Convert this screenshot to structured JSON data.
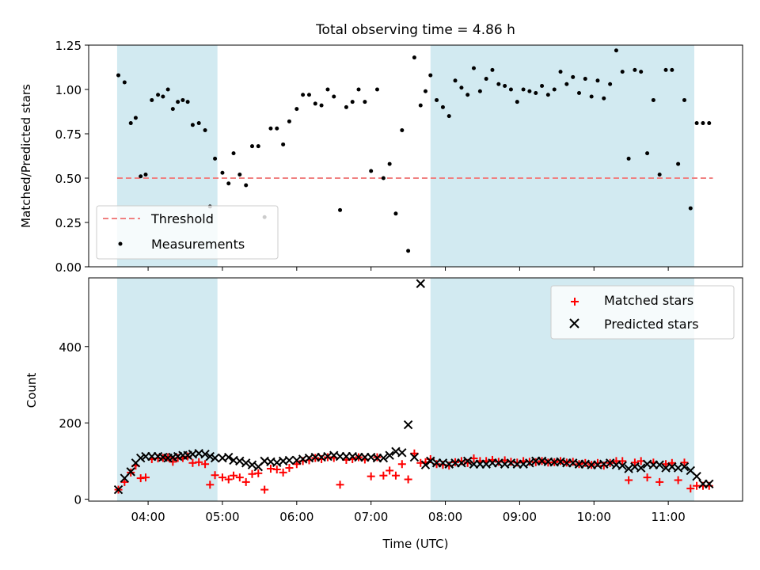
{
  "chart_data": [
    {
      "type": "scatter",
      "title": "Total observing time = 4.86 h",
      "ylabel": "Matched/Predicted stars",
      "xlabel": "",
      "xlim": [
        3.2,
        12.0
      ],
      "ylim": [
        0,
        1.25
      ],
      "yticks": [
        0,
        0.25,
        0.5,
        0.75,
        1.0,
        1.25
      ],
      "ytick_labels": [
        "0.00",
        "0.25",
        "0.50",
        "0.75",
        "1.00",
        "1.25"
      ],
      "shaded_intervals": [
        [
          3.583,
          4.933
        ],
        [
          7.8,
          11.35
        ]
      ],
      "shade_color": "#add8e6",
      "threshold": {
        "name": "Threshold",
        "value": 0.5,
        "x_range": [
          3.583,
          11.6
        ],
        "color": "#f08080"
      },
      "legend_location": "lower-left",
      "series": [
        {
          "name": "Measurements",
          "color": "#000000",
          "x": [
            3.6,
            3.683,
            3.767,
            3.833,
            3.9,
            3.967,
            4.05,
            4.133,
            4.2,
            4.267,
            4.333,
            4.4,
            4.467,
            4.533,
            4.6,
            4.683,
            4.767,
            4.833,
            4.9,
            5.0,
            5.083,
            5.15,
            5.233,
            5.317,
            5.4,
            5.483,
            5.567,
            5.65,
            5.733,
            5.817,
            5.9,
            6.0,
            6.083,
            6.167,
            6.25,
            6.333,
            6.417,
            6.5,
            6.583,
            6.667,
            6.75,
            6.833,
            6.917,
            7.0,
            7.083,
            7.167,
            7.25,
            7.333,
            7.417,
            7.5,
            7.583,
            7.667,
            7.733,
            7.8,
            7.883,
            7.967,
            8.05,
            8.133,
            8.217,
            8.3,
            8.383,
            8.467,
            8.55,
            8.633,
            8.717,
            8.8,
            8.883,
            8.967,
            9.05,
            9.133,
            9.217,
            9.3,
            9.383,
            9.467,
            9.55,
            9.633,
            9.717,
            9.8,
            9.883,
            9.967,
            10.05,
            10.133,
            10.217,
            10.3,
            10.383,
            10.467,
            10.55,
            10.633,
            10.717,
            10.8,
            10.883,
            10.967,
            11.05,
            11.133,
            11.217,
            11.3,
            11.383,
            11.467,
            11.55
          ],
          "y": [
            1.08,
            1.04,
            0.81,
            0.84,
            0.51,
            0.52,
            0.94,
            0.97,
            0.96,
            1.0,
            0.89,
            0.93,
            0.94,
            0.93,
            0.8,
            0.81,
            0.77,
            0.34,
            0.61,
            0.53,
            0.47,
            0.64,
            0.52,
            0.46,
            0.68,
            0.68,
            0.28,
            0.78,
            0.78,
            0.69,
            0.82,
            0.89,
            0.97,
            0.97,
            0.92,
            0.91,
            1.0,
            0.96,
            0.32,
            0.9,
            0.93,
            1.0,
            0.93,
            0.54,
            1.0,
            0.5,
            0.58,
            0.3,
            0.77,
            0.09,
            1.18,
            0.91,
            0.99,
            1.08,
            0.94,
            0.9,
            0.85,
            1.05,
            1.01,
            0.97,
            1.12,
            0.99,
            1.06,
            1.11,
            1.03,
            1.02,
            1.0,
            0.93,
            1.0,
            0.99,
            0.98,
            1.02,
            0.97,
            1.0,
            1.1,
            1.03,
            1.07,
            0.98,
            1.06,
            0.96,
            1.05,
            0.95,
            1.03,
            1.22,
            1.1,
            0.61,
            1.11,
            1.1,
            0.64,
            0.94,
            0.52,
            1.11,
            1.11,
            0.58,
            0.94,
            0.33,
            0.81,
            0.81,
            0.81
          ]
        }
      ]
    },
    {
      "type": "scatter",
      "title": "",
      "xlabel": "Time (UTC)",
      "ylabel": "Count",
      "xlim": [
        3.2,
        12.0
      ],
      "ylim": [
        -5,
        580
      ],
      "yticks": [
        0,
        200,
        400
      ],
      "ytick_labels": [
        "0",
        "200",
        "400"
      ],
      "xticks": [
        4,
        5,
        6,
        7,
        8,
        9,
        10,
        11
      ],
      "xtick_labels": [
        "04:00",
        "05:00",
        "06:00",
        "07:00",
        "08:00",
        "09:00",
        "10:00",
        "11:00"
      ],
      "shaded_intervals": [
        [
          3.583,
          4.933
        ],
        [
          7.8,
          11.35
        ]
      ],
      "shade_color": "#add8e6",
      "legend_location": "upper-right",
      "series": [
        {
          "name": "Matched stars",
          "marker": "plus",
          "color": "#ff0000",
          "x": [
            3.6,
            3.683,
            3.767,
            3.833,
            3.9,
            3.967,
            4.05,
            4.133,
            4.2,
            4.267,
            4.333,
            4.4,
            4.467,
            4.533,
            4.6,
            4.683,
            4.767,
            4.833,
            4.9,
            5.0,
            5.083,
            5.15,
            5.233,
            5.317,
            5.4,
            5.483,
            5.567,
            5.65,
            5.733,
            5.817,
            5.9,
            6.0,
            6.083,
            6.167,
            6.25,
            6.333,
            6.417,
            6.5,
            6.583,
            6.667,
            6.75,
            6.833,
            6.917,
            7.0,
            7.083,
            7.167,
            7.25,
            7.333,
            7.417,
            7.5,
            7.583,
            7.667,
            7.733,
            7.8,
            7.883,
            7.967,
            8.05,
            8.133,
            8.217,
            8.3,
            8.383,
            8.467,
            8.55,
            8.633,
            8.717,
            8.8,
            8.883,
            8.967,
            9.05,
            9.133,
            9.217,
            9.3,
            9.383,
            9.467,
            9.55,
            9.633,
            9.717,
            9.8,
            9.883,
            9.967,
            10.05,
            10.133,
            10.217,
            10.3,
            10.383,
            10.467,
            10.55,
            10.633,
            10.717,
            10.8,
            10.883,
            10.967,
            11.05,
            11.133,
            11.217,
            11.3,
            11.383,
            11.467,
            11.55
          ],
          "y": [
            25,
            45,
            70,
            88,
            55,
            57,
            105,
            107,
            108,
            110,
            98,
            108,
            108,
            112,
            95,
            97,
            92,
            38,
            63,
            57,
            52,
            62,
            57,
            45,
            66,
            68,
            25,
            80,
            78,
            70,
            82,
            92,
            100,
            102,
            108,
            105,
            110,
            108,
            38,
            103,
            105,
            110,
            104,
            60,
            110,
            62,
            75,
            62,
            92,
            52,
            120,
            95,
            97,
            105,
            92,
            90,
            88,
            97,
            100,
            95,
            107,
            100,
            100,
            103,
            98,
            102,
            98,
            96,
            100,
            98,
            97,
            100,
            96,
            97,
            100,
            96,
            98,
            92,
            95,
            90,
            95,
            88,
            95,
            100,
            100,
            50,
            96,
            100,
            57,
            96,
            45,
            92,
            95,
            50,
            96,
            28,
            35,
            35,
            35
          ]
        },
        {
          "name": "Predicted stars",
          "marker": "x",
          "color": "#000000",
          "x": [
            3.6,
            3.683,
            3.767,
            3.833,
            3.9,
            3.967,
            4.05,
            4.133,
            4.2,
            4.267,
            4.333,
            4.4,
            4.467,
            4.533,
            4.6,
            4.683,
            4.767,
            4.833,
            4.9,
            5.0,
            5.083,
            5.15,
            5.233,
            5.317,
            5.4,
            5.483,
            5.567,
            5.65,
            5.733,
            5.817,
            5.9,
            6.0,
            6.083,
            6.167,
            6.25,
            6.333,
            6.417,
            6.5,
            6.583,
            6.667,
            6.75,
            6.833,
            6.917,
            7.0,
            7.083,
            7.167,
            7.25,
            7.333,
            7.417,
            7.5,
            7.583,
            7.667,
            7.733,
            7.8,
            7.883,
            7.967,
            8.05,
            8.133,
            8.217,
            8.3,
            8.383,
            8.467,
            8.55,
            8.633,
            8.717,
            8.8,
            8.883,
            8.967,
            9.05,
            9.133,
            9.217,
            9.3,
            9.383,
            9.467,
            9.55,
            9.633,
            9.717,
            9.8,
            9.883,
            9.967,
            10.05,
            10.133,
            10.217,
            10.3,
            10.383,
            10.467,
            10.55,
            10.633,
            10.717,
            10.8,
            10.883,
            10.967,
            11.05,
            11.133,
            11.217,
            11.3,
            11.383,
            11.467,
            11.55
          ],
          "y": [
            25,
            55,
            72,
            95,
            108,
            112,
            112,
            112,
            110,
            108,
            110,
            112,
            115,
            115,
            118,
            120,
            118,
            112,
            108,
            108,
            110,
            102,
            100,
            95,
            90,
            85,
            100,
            98,
            96,
            100,
            102,
            102,
            105,
            108,
            110,
            110,
            112,
            115,
            112,
            112,
            112,
            110,
            110,
            110,
            108,
            108,
            115,
            125,
            122,
            195,
            110,
            565,
            90,
            100,
            95,
            95,
            92,
            95,
            95,
            100,
            92,
            92,
            92,
            95,
            95,
            92,
            95,
            92,
            92,
            95,
            100,
            100,
            98,
            97,
            98,
            95,
            95,
            92,
            92,
            90,
            90,
            92,
            95,
            90,
            88,
            80,
            85,
            82,
            92,
            90,
            90,
            82,
            85,
            82,
            85,
            75,
            60,
            40,
            40
          ]
        }
      ]
    }
  ]
}
